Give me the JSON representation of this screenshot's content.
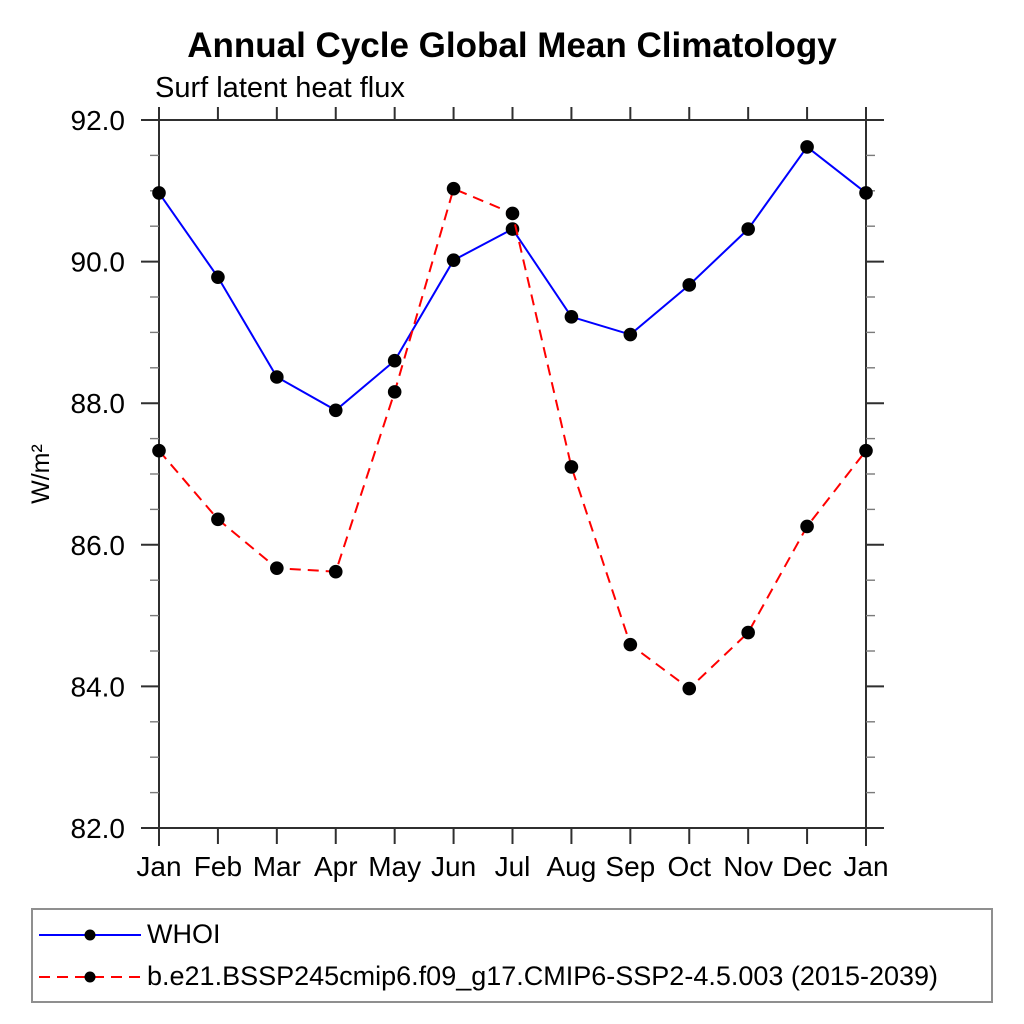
{
  "chart_data": {
    "type": "line",
    "title": "Annual Cycle Global Mean Climatology",
    "subtitle": "Surf latent heat flux",
    "ylabel": "W/m²",
    "categories": [
      "Jan",
      "Feb",
      "Mar",
      "Apr",
      "May",
      "Jun",
      "Jul",
      "Aug",
      "Sep",
      "Oct",
      "Nov",
      "Dec",
      "Jan"
    ],
    "ylim": [
      82.0,
      92.0
    ],
    "y_major_step": 2.0,
    "y_minor_step": 0.5,
    "y_tick_labels": [
      "82.0",
      "84.0",
      "86.0",
      "88.0",
      "90.0",
      "92.0"
    ],
    "grid": false,
    "legend_position": "bottom",
    "marker": "filled-circle",
    "marker_color": "#000000",
    "axis_color": "#2f2f2f",
    "minor_tick_color": "#7a7a7a",
    "series": [
      {
        "name": "WHOI",
        "color": "#0000ff",
        "line_style": "solid",
        "values": [
          90.97,
          89.78,
          88.37,
          87.9,
          88.6,
          90.02,
          90.46,
          89.22,
          88.97,
          89.67,
          90.46,
          91.62,
          90.97
        ]
      },
      {
        "name": "b.e21.BSSP245cmip6.f09_g17.CMIP6-SSP2-4.5.003 (2015-2039)",
        "color": "#ff0000",
        "line_style": "dashed",
        "values": [
          87.33,
          86.36,
          85.67,
          85.62,
          88.16,
          91.03,
          90.68,
          87.1,
          84.59,
          83.97,
          84.76,
          86.26,
          87.33
        ]
      }
    ]
  }
}
